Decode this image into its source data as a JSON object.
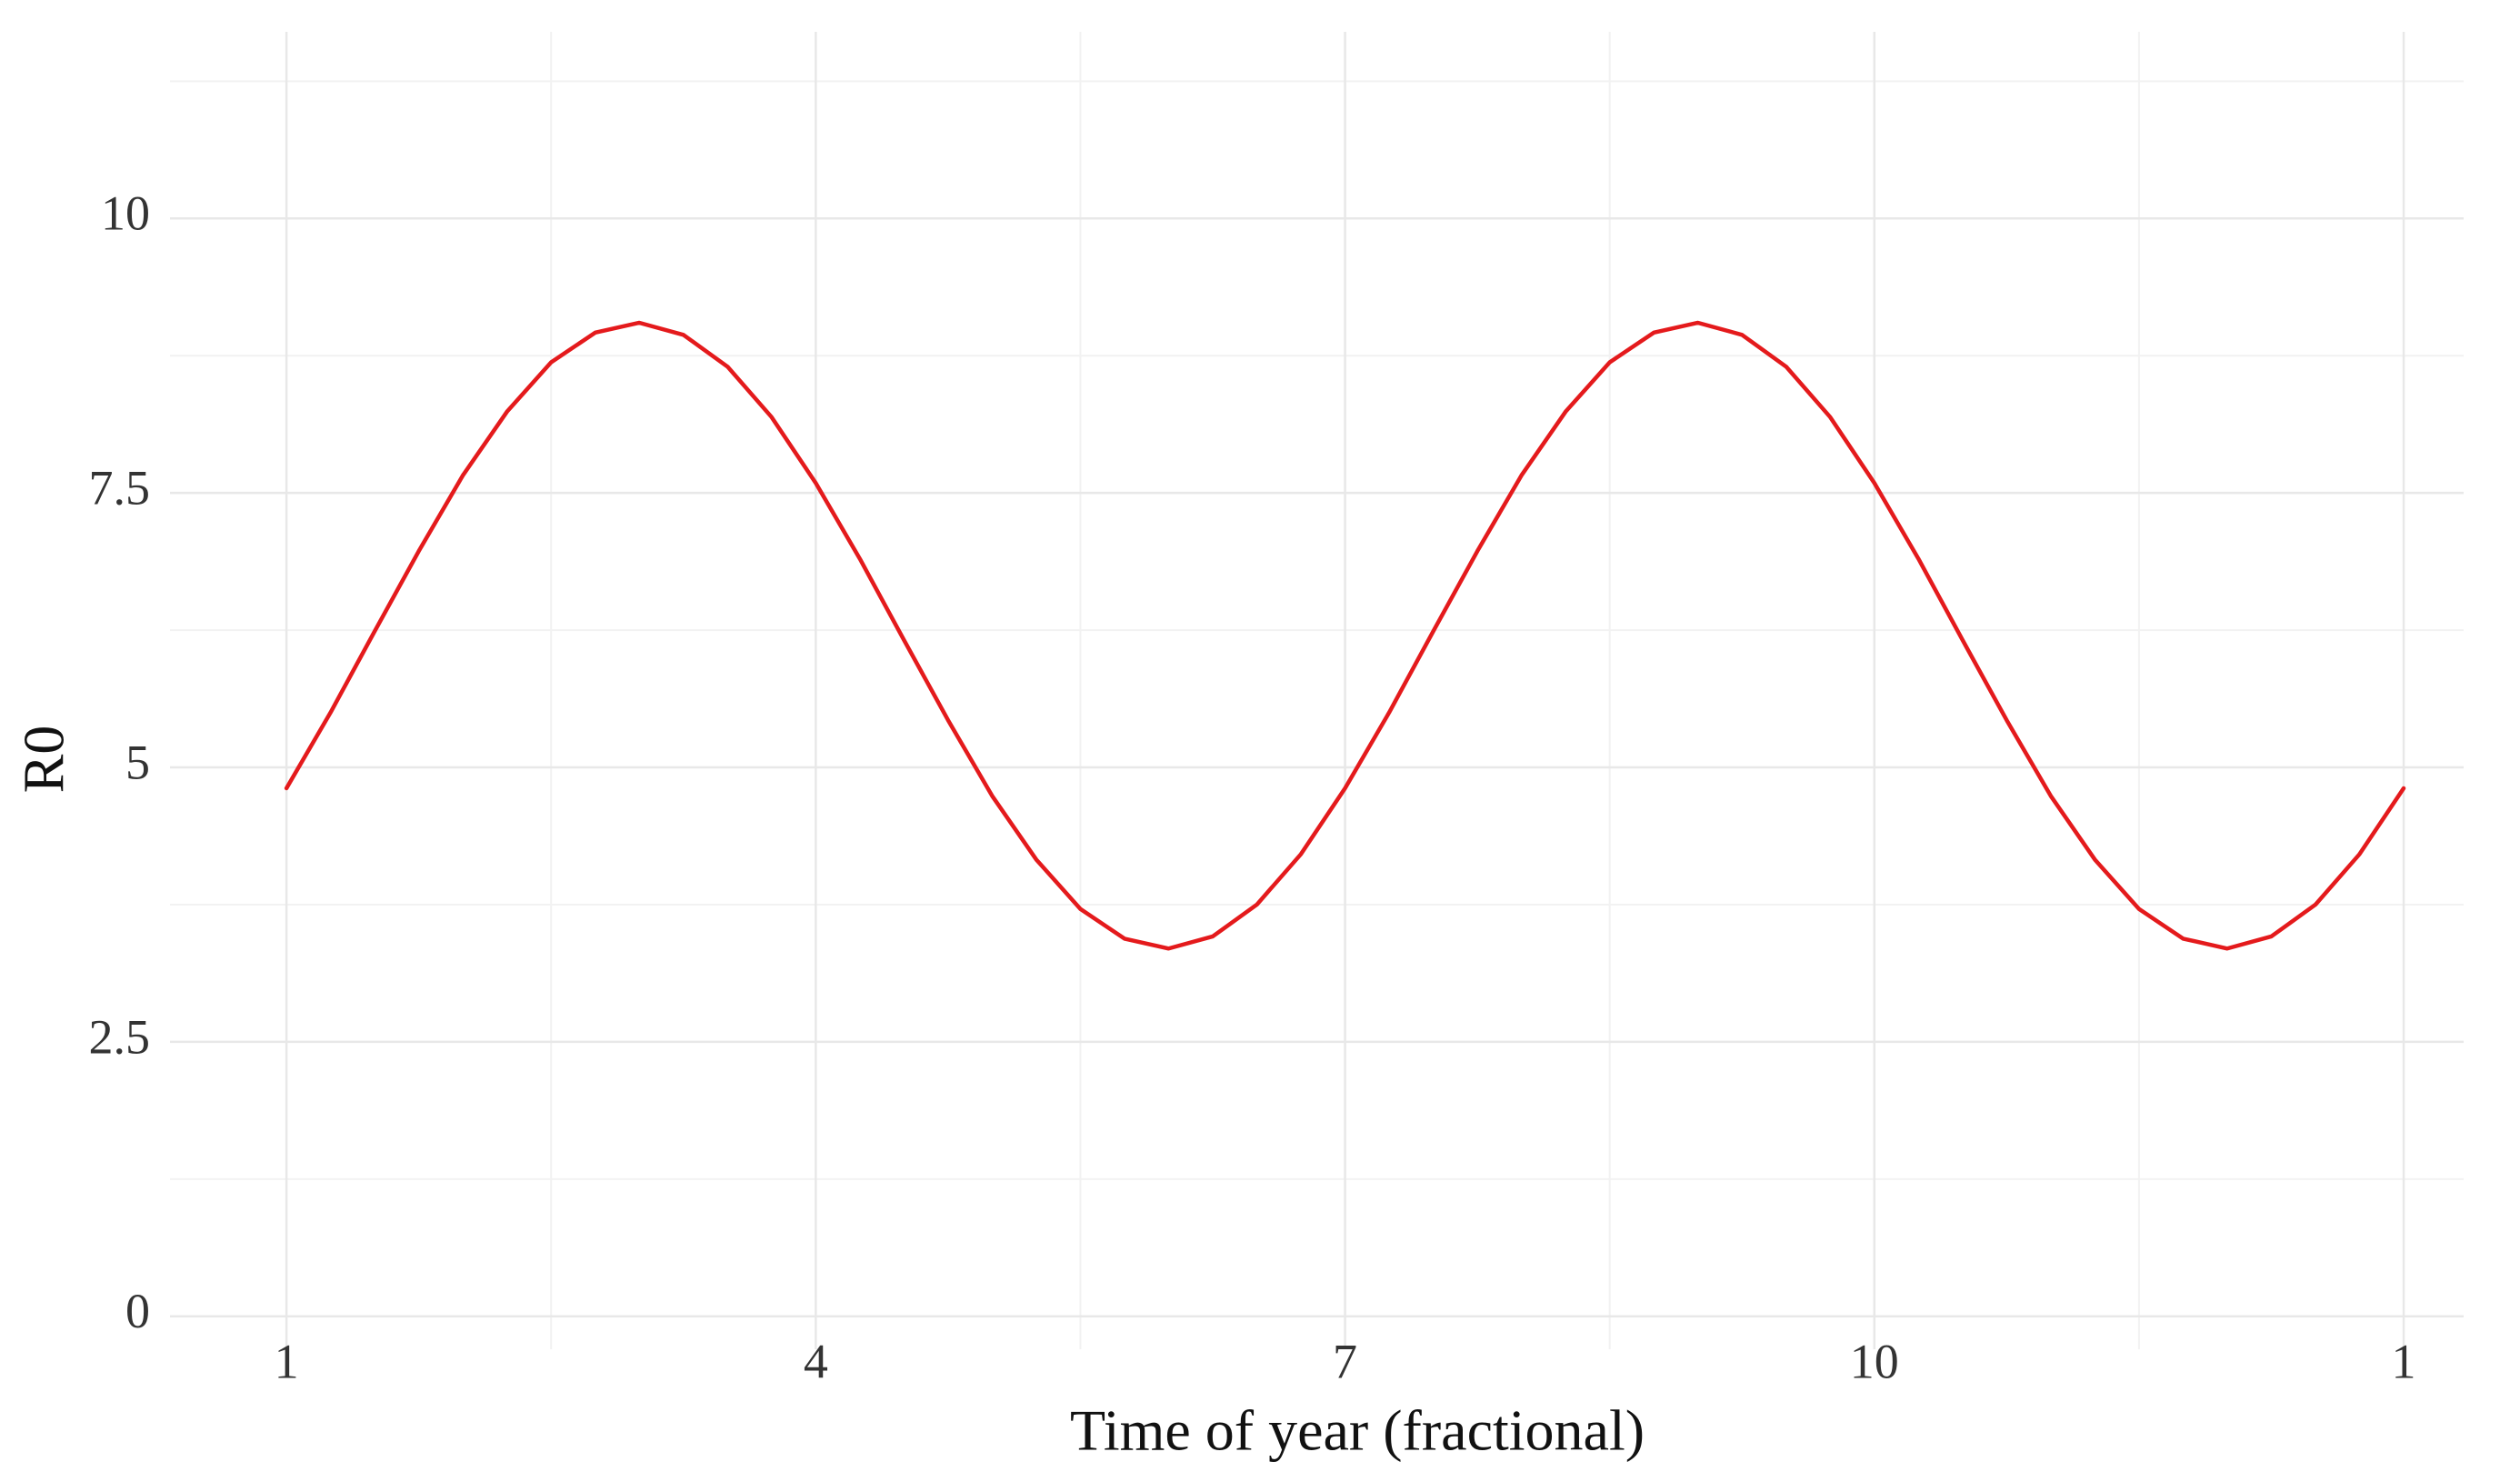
{
  "chart_data": {
    "type": "line",
    "xlabel": "Time of year (fractional)",
    "ylabel": "R0",
    "series": [
      {
        "color": "#e41a1c",
        "x": [
          1,
          1.25,
          1.5,
          1.75,
          2,
          2.25,
          2.5,
          2.75,
          3,
          3.25,
          3.5,
          3.75,
          4,
          4.25,
          4.5,
          4.75,
          5,
          5.25,
          5.5,
          5.75,
          6,
          6.25,
          6.5,
          6.75,
          7,
          7.25,
          7.5,
          7.75,
          8,
          8.25,
          8.5,
          8.75,
          9,
          9.25,
          9.5,
          9.75,
          10,
          10.25,
          10.5,
          10.75,
          11,
          11.25,
          11.5,
          11.75,
          12,
          12.25,
          12.5,
          12.75,
          13
        ],
        "values": [
          4.81,
          5.5,
          6.24,
          6.97,
          7.66,
          8.24,
          8.69,
          8.96,
          9.05,
          8.94,
          8.65,
          8.19,
          7.59,
          6.9,
          6.16,
          5.43,
          4.74,
          4.16,
          3.71,
          3.44,
          3.35,
          3.46,
          3.75,
          4.21,
          4.81,
          5.5,
          6.24,
          6.97,
          7.66,
          8.24,
          8.69,
          8.96,
          9.05,
          8.94,
          8.65,
          8.19,
          7.59,
          6.9,
          6.16,
          5.43,
          4.74,
          4.16,
          3.71,
          3.44,
          3.35,
          3.46,
          3.75,
          4.21,
          4.81
        ]
      }
    ],
    "xlim": [
      0.34,
      13.34
    ],
    "xticks": [
      1,
      4,
      7,
      10,
      {
        "value": 13,
        "label": "1"
      }
    ],
    "xminorticks": [
      2.5,
      5.5,
      8.5,
      11.5
    ],
    "ylim": [
      -0.3,
      11.7
    ],
    "yticks": [
      0,
      2.5,
      5,
      7.5,
      10
    ],
    "yminorticks": [
      1.25,
      3.75,
      6.25,
      8.75,
      11.25
    ],
    "grid": true
  }
}
